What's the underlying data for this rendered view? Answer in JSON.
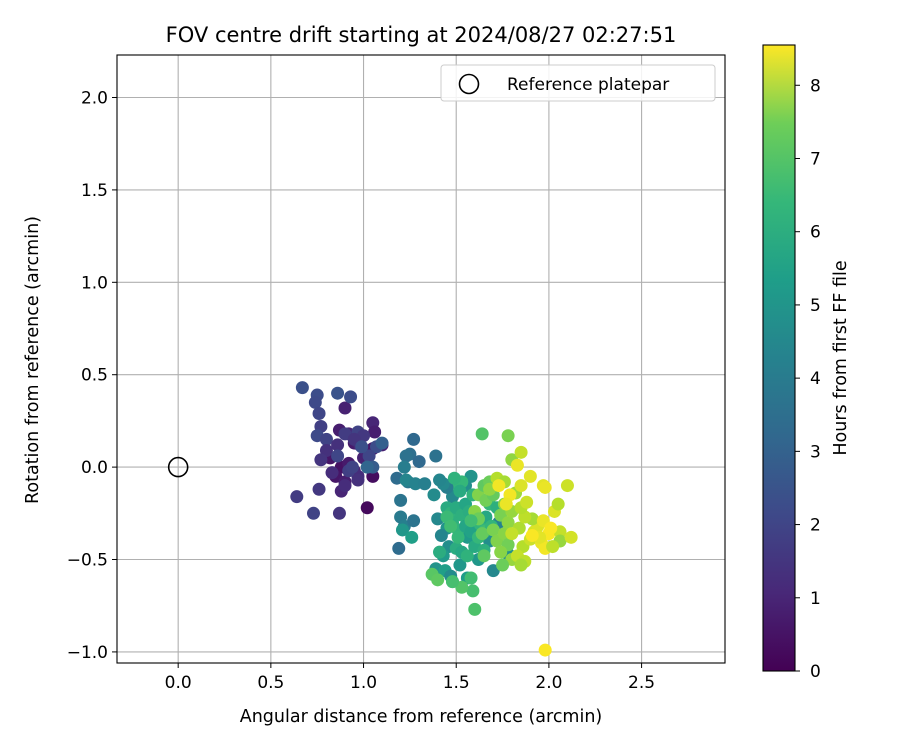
{
  "chart_data": {
    "type": "scatter",
    "title": "FOV centre drift starting at 2024/08/27 02:27:51",
    "xlabel": "Angular distance from reference (arcmin)",
    "ylabel": "Rotation from reference (arcmin)",
    "xlim": [
      -0.33,
      2.95
    ],
    "ylim": [
      -1.06,
      2.23
    ],
    "x_ticks": [
      0.0,
      0.5,
      1.0,
      1.5,
      2.0,
      2.5
    ],
    "x_tick_labels": [
      "0.0",
      "0.5",
      "1.0",
      "1.5",
      "2.0",
      "2.5"
    ],
    "y_ticks": [
      -1.0,
      -0.5,
      0.0,
      0.5,
      1.0,
      1.5,
      2.0
    ],
    "y_tick_labels": [
      "−1.0",
      "−0.5",
      "0.0",
      "0.5",
      "1.0",
      "1.5",
      "2.0"
    ],
    "grid": true,
    "legend": {
      "position": "top-right",
      "entries": [
        "Reference platepar"
      ]
    },
    "reference_point": {
      "name": "Reference platepar",
      "x": 0.0,
      "y": 0.0
    },
    "colorbar": {
      "label": "Hours from first FF file",
      "range": [
        0,
        8.55
      ],
      "ticks": [
        0,
        1,
        2,
        3,
        4,
        5,
        6,
        7,
        8
      ],
      "tick_labels": [
        "0",
        "1",
        "2",
        "3",
        "4",
        "5",
        "6",
        "7",
        "8"
      ],
      "colormap": "viridis"
    },
    "points_xyh": [
      [
        0.9,
        0.32,
        0.8
      ],
      [
        0.87,
        0.2,
        0.7
      ],
      [
        0.92,
        0.18,
        0.9
      ],
      [
        1.05,
        0.24,
        0.9
      ],
      [
        1.06,
        0.19,
        0.7
      ],
      [
        0.95,
        0.13,
        0.6
      ],
      [
        1.05,
        0.1,
        0.6
      ],
      [
        1.1,
        0.12,
        0.8
      ],
      [
        0.82,
        0.05,
        0.5
      ],
      [
        0.88,
        0.0,
        0.4
      ],
      [
        0.92,
        0.02,
        0.6
      ],
      [
        0.85,
        -0.05,
        0.5
      ],
      [
        0.9,
        -0.08,
        0.7
      ],
      [
        0.88,
        -0.13,
        0.9
      ],
      [
        1.05,
        -0.05,
        0.3
      ],
      [
        1.02,
        -0.22,
        0.2
      ],
      [
        0.95,
        -0.02,
        0.9
      ],
      [
        0.98,
        0.12,
        1.0
      ],
      [
        1.0,
        0.05,
        0.8
      ],
      [
        0.97,
        -0.05,
        1.1
      ],
      [
        0.67,
        0.43,
        2.1
      ],
      [
        0.75,
        0.39,
        2.0
      ],
      [
        0.74,
        0.35,
        1.9
      ],
      [
        0.86,
        0.4,
        2.2
      ],
      [
        0.93,
        0.38,
        2.0
      ],
      [
        0.76,
        0.29,
        1.8
      ],
      [
        0.77,
        0.22,
        1.6
      ],
      [
        0.75,
        0.17,
        1.9
      ],
      [
        0.8,
        0.15,
        1.7
      ],
      [
        0.9,
        0.18,
        1.5
      ],
      [
        0.97,
        0.19,
        1.7
      ],
      [
        1.0,
        0.17,
        1.4
      ],
      [
        0.86,
        0.12,
        1.2
      ],
      [
        0.95,
        0.15,
        1.3
      ],
      [
        0.8,
        0.09,
        1.2
      ],
      [
        0.77,
        0.04,
        1.3
      ],
      [
        0.86,
        0.06,
        1.8
      ],
      [
        1.07,
        0.11,
        2.0
      ],
      [
        1.1,
        0.13,
        2.6
      ],
      [
        1.03,
        0.06,
        1.8
      ],
      [
        1.05,
        0.0,
        2.5
      ],
      [
        1.02,
        0.0,
        2.8
      ],
      [
        0.92,
        -0.02,
        1.6
      ],
      [
        0.94,
        0.0,
        1.7
      ],
      [
        0.83,
        -0.03,
        1.1
      ],
      [
        0.76,
        -0.12,
        1.4
      ],
      [
        0.64,
        -0.16,
        1.5
      ],
      [
        0.73,
        -0.25,
        1.7
      ],
      [
        0.87,
        -0.25,
        1.3
      ],
      [
        0.9,
        -0.1,
        1.1
      ],
      [
        0.97,
        -0.07,
        1.2
      ],
      [
        0.99,
        0.11,
        2.1
      ],
      [
        1.27,
        0.15,
        2.9
      ],
      [
        1.25,
        0.07,
        3.1
      ],
      [
        1.23,
        0.06,
        3.2
      ],
      [
        1.3,
        0.03,
        2.9
      ],
      [
        1.22,
        0.0,
        3.6
      ],
      [
        1.18,
        -0.06,
        3.0
      ],
      [
        1.24,
        -0.08,
        3.4
      ],
      [
        1.2,
        -0.18,
        3.3
      ],
      [
        1.23,
        -0.07,
        3.9
      ],
      [
        1.28,
        -0.09,
        3.8
      ],
      [
        1.33,
        -0.09,
        3.7
      ],
      [
        1.38,
        -0.15,
        4.1
      ],
      [
        1.39,
        0.06,
        3.2
      ],
      [
        1.2,
        -0.27,
        3.5
      ],
      [
        1.22,
        -0.32,
        3.7
      ],
      [
        1.27,
        -0.29,
        3.3
      ],
      [
        1.19,
        -0.44,
        3.0
      ],
      [
        1.21,
        -0.34,
        4.5
      ],
      [
        1.26,
        -0.38,
        4.8
      ],
      [
        1.4,
        -0.28,
        4.0
      ],
      [
        1.45,
        -0.33,
        4.4
      ],
      [
        1.42,
        -0.37,
        3.9
      ],
      [
        1.46,
        -0.43,
        4.2
      ],
      [
        1.43,
        -0.48,
        4.6
      ],
      [
        1.41,
        -0.46,
        5.3
      ],
      [
        1.39,
        -0.55,
        4.4
      ],
      [
        1.44,
        -0.56,
        4.8
      ],
      [
        1.47,
        -0.59,
        4.1
      ],
      [
        1.48,
        -0.62,
        4.3
      ],
      [
        1.52,
        -0.53,
        4.5
      ],
      [
        1.56,
        -0.6,
        4.7
      ],
      [
        1.58,
        -0.05,
        4.4
      ],
      [
        1.55,
        -0.1,
        4.2
      ],
      [
        1.5,
        -0.1,
        5.6
      ],
      [
        1.48,
        -0.16,
        4.0
      ],
      [
        1.45,
        -0.11,
        3.6
      ],
      [
        1.43,
        -0.09,
        4.0
      ],
      [
        1.41,
        -0.07,
        3.9
      ],
      [
        1.56,
        -0.38,
        4.6
      ],
      [
        1.6,
        -0.3,
        4.0
      ],
      [
        1.68,
        -0.4,
        4.2
      ],
      [
        1.62,
        -0.5,
        4.5
      ],
      [
        1.7,
        -0.56,
        4.0
      ],
      [
        1.73,
        -0.3,
        3.8
      ],
      [
        1.78,
        -0.47,
        4.2
      ],
      [
        1.45,
        -0.22,
        5.2
      ],
      [
        1.47,
        -0.25,
        5.5
      ],
      [
        1.5,
        -0.22,
        5.2
      ],
      [
        1.53,
        -0.26,
        5.4
      ],
      [
        1.55,
        -0.2,
        5.0
      ],
      [
        1.57,
        -0.24,
        5.3
      ],
      [
        1.48,
        -0.3,
        5.4
      ],
      [
        1.51,
        -0.34,
        5.6
      ],
      [
        1.55,
        -0.32,
        5.0
      ],
      [
        1.58,
        -0.35,
        4.9
      ],
      [
        1.5,
        -0.44,
        5.3
      ],
      [
        1.53,
        -0.46,
        5.1
      ],
      [
        1.56,
        -0.48,
        5.5
      ],
      [
        1.6,
        -0.43,
        5.2
      ],
      [
        1.62,
        -0.38,
        5.7
      ],
      [
        1.65,
        -0.45,
        5.4
      ],
      [
        1.63,
        -0.31,
        5.6
      ],
      [
        1.66,
        -0.27,
        5.1
      ],
      [
        1.68,
        -0.2,
        5.7
      ],
      [
        1.59,
        -0.15,
        5.5
      ],
      [
        1.53,
        -0.08,
        5.7
      ],
      [
        1.49,
        -0.06,
        5.5
      ],
      [
        1.52,
        -0.13,
        5.2
      ],
      [
        1.45,
        -0.27,
        5.8
      ],
      [
        1.47,
        -0.32,
        5.9
      ],
      [
        1.51,
        -0.38,
        5.7
      ],
      [
        1.58,
        -0.6,
        5.9
      ],
      [
        1.59,
        -0.67,
        6.0
      ],
      [
        1.6,
        -0.77,
        6.1
      ],
      [
        1.53,
        -0.65,
        6.2
      ],
      [
        1.48,
        -0.62,
        6.0
      ],
      [
        1.37,
        -0.58,
        6.3
      ],
      [
        1.4,
        -0.61,
        6.4
      ],
      [
        1.64,
        0.18,
        6.2
      ],
      [
        1.65,
        -0.35,
        5.9
      ],
      [
        1.69,
        -0.32,
        5.6
      ],
      [
        1.72,
        -0.22,
        5.4
      ],
      [
        1.62,
        -0.15,
        6.9
      ],
      [
        1.66,
        -0.18,
        6.7
      ],
      [
        1.7,
        -0.15,
        6.5
      ],
      [
        1.65,
        -0.1,
        6.4
      ],
      [
        1.68,
        -0.08,
        6.6
      ],
      [
        1.6,
        -0.24,
        7.0
      ],
      [
        1.62,
        -0.28,
        6.6
      ],
      [
        1.64,
        -0.36,
        6.5
      ],
      [
        1.7,
        -0.34,
        6.8
      ],
      [
        1.72,
        -0.4,
        6.9
      ],
      [
        1.76,
        -0.36,
        7.0
      ],
      [
        1.74,
        -0.26,
        6.8
      ],
      [
        1.78,
        -0.3,
        7.1
      ],
      [
        1.8,
        -0.24,
        7.2
      ],
      [
        1.82,
        -0.14,
        7.3
      ],
      [
        1.78,
        0.17,
        6.8
      ],
      [
        1.8,
        0.04,
        7.1
      ],
      [
        1.78,
        -0.42,
        6.7
      ],
      [
        1.74,
        -0.46,
        7.0
      ],
      [
        1.8,
        -0.5,
        7.2
      ],
      [
        1.75,
        -0.53,
        6.6
      ],
      [
        1.65,
        -0.48,
        6.4
      ],
      [
        1.68,
        -0.12,
        7.1
      ],
      [
        1.72,
        -0.06,
        7.6
      ],
      [
        1.76,
        -0.08,
        7.4
      ],
      [
        1.76,
        -0.2,
        7.0
      ],
      [
        1.58,
        -0.29,
        5.9
      ],
      [
        1.84,
        -0.33,
        7.5
      ],
      [
        1.86,
        -0.43,
        7.6
      ],
      [
        1.83,
        -0.48,
        7.8
      ],
      [
        1.87,
        -0.51,
        7.7
      ],
      [
        1.85,
        -0.53,
        7.4
      ],
      [
        1.9,
        -0.39,
        7.9
      ],
      [
        1.92,
        -0.35,
        8.0
      ],
      [
        1.94,
        -0.32,
        8.1
      ],
      [
        1.91,
        -0.28,
        7.4
      ],
      [
        1.87,
        -0.27,
        7.7
      ],
      [
        1.85,
        -0.22,
        7.6
      ],
      [
        1.88,
        -0.19,
        7.9
      ],
      [
        1.85,
        -0.1,
        8.1
      ],
      [
        1.83,
        0.01,
        8.3
      ],
      [
        1.85,
        0.08,
        7.8
      ],
      [
        1.8,
        -0.36,
        7.8
      ],
      [
        1.96,
        -0.41,
        8.3
      ],
      [
        1.98,
        -0.44,
        8.4
      ],
      [
        2.0,
        -0.36,
        8.5
      ],
      [
        1.97,
        -0.29,
        8.3
      ],
      [
        1.95,
        -0.38,
        8.2
      ],
      [
        2.03,
        -0.24,
        8.1
      ],
      [
        2.05,
        -0.2,
        7.6
      ],
      [
        2.06,
        -0.35,
        7.8
      ],
      [
        2.06,
        -0.4,
        7.2
      ],
      [
        2.02,
        -0.43,
        7.7
      ],
      [
        1.97,
        -0.1,
        8.2
      ],
      [
        1.98,
        -0.11,
        8.3
      ],
      [
        2.1,
        -0.1,
        7.9
      ],
      [
        2.12,
        -0.38,
        8.0
      ],
      [
        1.73,
        -0.1,
        8.4
      ],
      [
        1.79,
        -0.15,
        8.4
      ],
      [
        1.77,
        -0.2,
        8.3
      ],
      [
        1.91,
        -0.37,
        8.5
      ],
      [
        1.98,
        -0.99,
        8.5
      ],
      [
        1.9,
        -0.05,
        8.2
      ],
      [
        2.01,
        -0.33,
        8.5
      ]
    ]
  }
}
